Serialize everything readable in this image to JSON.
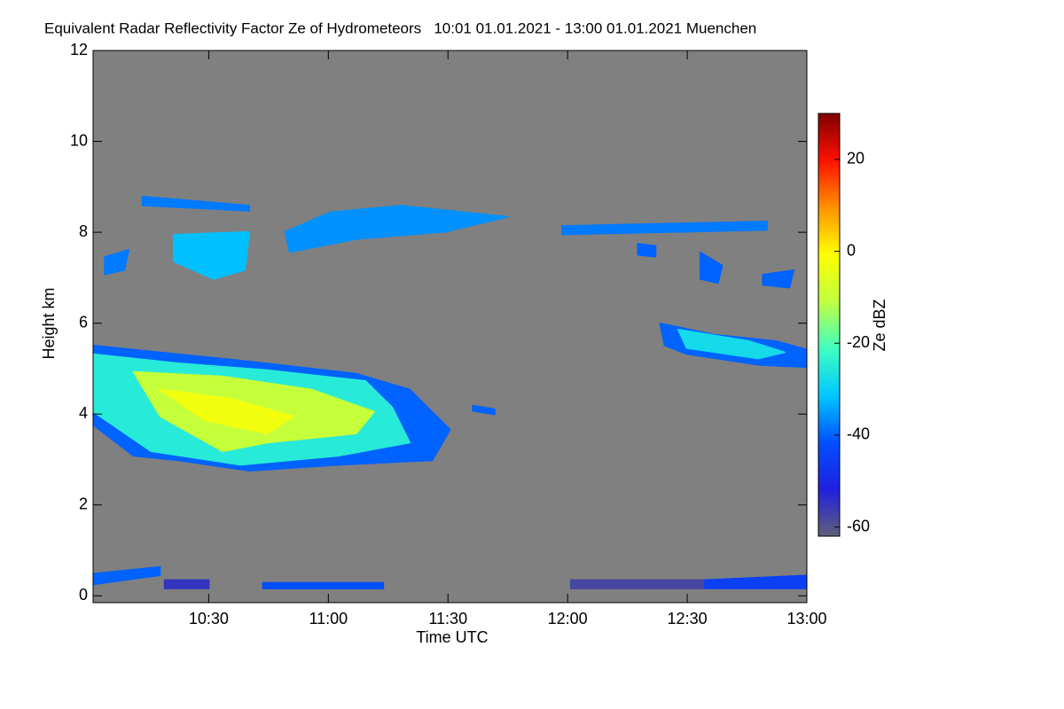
{
  "chart_data": {
    "type": "time-height",
    "title": "Equivalent Radar Reflectivity Factor Ze of Hydrometeors   10:01 01.01.2021 - 13:00 01.01.2021 Muenchen",
    "x_label": "Time UTC",
    "y_label": "Height km",
    "colorbar_label": "Ze dBZ",
    "background": "#808080",
    "xlim": [
      10.0167,
      13.0
    ],
    "xticks": [
      {
        "value": 10.5,
        "label": "10:30"
      },
      {
        "value": 11.0,
        "label": "11:00"
      },
      {
        "value": 11.5,
        "label": "11:30"
      },
      {
        "value": 12.0,
        "label": "12:00"
      },
      {
        "value": 12.5,
        "label": "12:30"
      },
      {
        "value": 13.0,
        "label": "13:00"
      }
    ],
    "ylim": [
      -0.15,
      12
    ],
    "yticks": [
      0,
      2,
      4,
      6,
      8,
      10,
      12
    ],
    "zlim": [
      -62,
      30
    ],
    "zticks": [
      -60,
      -40,
      -20,
      0,
      20
    ],
    "colormap": [
      "#606078",
      "#2020e0",
      "#0050ff",
      "#00c8ff",
      "#40ffc0",
      "#c0ff40",
      "#ffff00",
      "#ff9000",
      "#ff1000",
      "#800000"
    ],
    "echoes": [
      {
        "dbz": -40,
        "points": [
          [
            10.017,
            5.51
          ],
          [
            10.371,
            5.32
          ],
          [
            10.67,
            5.16
          ],
          [
            11.117,
            4.89
          ],
          [
            11.341,
            4.54
          ],
          [
            11.509,
            3.66
          ],
          [
            11.435,
            2.98
          ],
          [
            11.043,
            2.88
          ],
          [
            10.67,
            2.75
          ],
          [
            10.371,
            2.98
          ],
          [
            10.185,
            3.08
          ],
          [
            10.017,
            3.76
          ]
        ]
      },
      {
        "dbz": -25,
        "points": [
          [
            10.017,
            5.32
          ],
          [
            10.371,
            5.12
          ],
          [
            10.745,
            4.97
          ],
          [
            11.155,
            4.73
          ],
          [
            11.267,
            4.15
          ],
          [
            11.341,
            3.37
          ],
          [
            11.043,
            3.08
          ],
          [
            10.632,
            2.88
          ],
          [
            10.259,
            3.18
          ],
          [
            10.017,
            4.05
          ]
        ]
      },
      {
        "dbz": -10,
        "points": [
          [
            10.185,
            4.93
          ],
          [
            10.558,
            4.83
          ],
          [
            10.931,
            4.54
          ],
          [
            11.192,
            4.05
          ],
          [
            11.117,
            3.57
          ],
          [
            10.745,
            3.37
          ],
          [
            10.558,
            3.18
          ],
          [
            10.297,
            3.95
          ]
        ]
      },
      {
        "dbz": -3,
        "points": [
          [
            10.297,
            4.54
          ],
          [
            10.595,
            4.34
          ],
          [
            10.857,
            3.95
          ],
          [
            10.745,
            3.57
          ],
          [
            10.483,
            3.86
          ]
        ]
      },
      {
        "dbz": -40,
        "points": [
          [
            12.386,
            6.0
          ],
          [
            12.61,
            5.75
          ],
          [
            12.871,
            5.61
          ],
          [
            13.0,
            5.42
          ],
          [
            13.0,
            5.03
          ],
          [
            12.797,
            5.08
          ],
          [
            12.498,
            5.32
          ],
          [
            12.405,
            5.51
          ]
        ]
      },
      {
        "dbz": -28,
        "points": [
          [
            12.461,
            5.86
          ],
          [
            12.759,
            5.61
          ],
          [
            12.908,
            5.36
          ],
          [
            12.797,
            5.22
          ],
          [
            12.498,
            5.45
          ]
        ]
      },
      {
        "dbz": -38,
        "points": [
          [
            10.222,
            8.79
          ],
          [
            10.67,
            8.59
          ],
          [
            10.67,
            8.47
          ],
          [
            10.222,
            8.59
          ]
        ]
      },
      {
        "dbz": -32,
        "points": [
          [
            10.353,
            7.95
          ],
          [
            10.67,
            8.01
          ],
          [
            10.651,
            7.17
          ],
          [
            10.52,
            6.97
          ],
          [
            10.353,
            7.36
          ]
        ]
      },
      {
        "dbz": -38,
        "points": [
          [
            10.065,
            7.46
          ],
          [
            10.166,
            7.62
          ],
          [
            10.147,
            7.17
          ],
          [
            10.065,
            7.07
          ]
        ]
      },
      {
        "dbz": -36,
        "points": [
          [
            10.819,
            8.01
          ],
          [
            11.006,
            8.44
          ],
          [
            11.304,
            8.59
          ],
          [
            11.752,
            8.34
          ],
          [
            11.49,
            8.01
          ],
          [
            11.118,
            7.85
          ],
          [
            10.838,
            7.56
          ]
        ]
      },
      {
        "dbz": -38,
        "points": [
          [
            11.976,
            8.14
          ],
          [
            12.834,
            8.24
          ],
          [
            12.834,
            8.05
          ],
          [
            11.976,
            7.95
          ]
        ]
      },
      {
        "dbz": -40,
        "points": [
          [
            12.554,
            7.56
          ],
          [
            12.647,
            7.27
          ],
          [
            12.629,
            6.88
          ],
          [
            12.554,
            6.97
          ]
        ]
      },
      {
        "dbz": -40,
        "points": [
          [
            12.815,
            7.07
          ],
          [
            12.946,
            7.17
          ],
          [
            12.927,
            6.78
          ],
          [
            12.815,
            6.84
          ]
        ]
      },
      {
        "dbz": -40,
        "points": [
          [
            12.293,
            7.75
          ],
          [
            12.368,
            7.7
          ],
          [
            12.368,
            7.46
          ],
          [
            12.293,
            7.5
          ]
        ]
      },
      {
        "dbz": -40,
        "points": [
          [
            11.603,
            4.19
          ],
          [
            11.696,
            4.11
          ],
          [
            11.696,
            3.99
          ],
          [
            11.603,
            4.07
          ]
        ]
      },
      {
        "dbz": -40,
        "points": [
          [
            10.017,
            0.49
          ],
          [
            10.297,
            0.64
          ],
          [
            10.297,
            0.45
          ],
          [
            10.017,
            0.25
          ]
        ]
      },
      {
        "dbz": -58,
        "points": [
          [
            12.013,
            0.35
          ],
          [
            12.573,
            0.35
          ],
          [
            12.573,
            0.16
          ],
          [
            12.013,
            0.16
          ]
        ]
      },
      {
        "dbz": -45,
        "points": [
          [
            12.573,
            0.35
          ],
          [
            13.0,
            0.45
          ],
          [
            13.0,
            0.16
          ],
          [
            12.573,
            0.16
          ]
        ]
      },
      {
        "dbz": -55,
        "points": [
          [
            10.315,
            0.35
          ],
          [
            10.501,
            0.35
          ],
          [
            10.501,
            0.16
          ],
          [
            10.315,
            0.16
          ]
        ]
      },
      {
        "dbz": -42,
        "points": [
          [
            10.726,
            0.29
          ],
          [
            11.23,
            0.29
          ],
          [
            11.23,
            0.16
          ],
          [
            10.726,
            0.16
          ]
        ]
      }
    ]
  }
}
